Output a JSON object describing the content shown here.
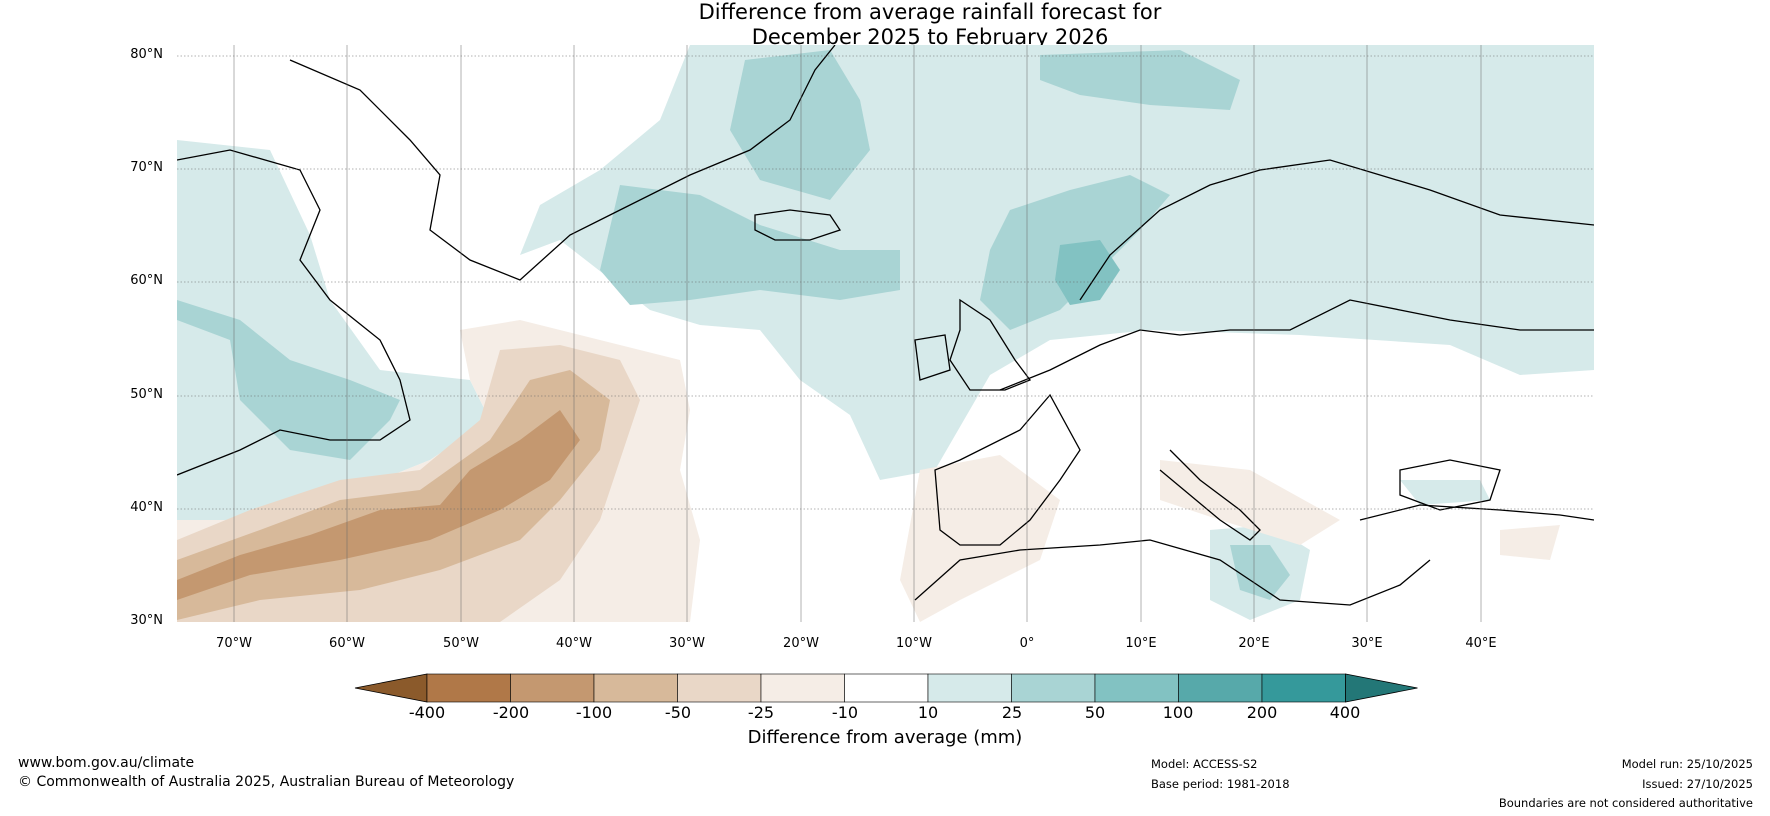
{
  "title": {
    "line1": "Difference from average rainfall forecast for",
    "line2": "December 2025 to February 2026"
  },
  "axes": {
    "lat_labels": [
      "80°N",
      "70°N",
      "60°N",
      "50°N",
      "40°N",
      "30°N"
    ],
    "lon_labels": [
      "70°W",
      "60°W",
      "50°W",
      "40°W",
      "30°W",
      "20°W",
      "10°W",
      "0°",
      "10°E",
      "20°E",
      "30°E",
      "40°E"
    ]
  },
  "colorbar": {
    "ticks": [
      "-400",
      "-200",
      "-100",
      "-50",
      "-25",
      "-10",
      "10",
      "25",
      "50",
      "100",
      "200",
      "400"
    ],
    "colors": [
      "#8b5a2b",
      "#b07848",
      "#c49870",
      "#d7b99a",
      "#e9d7c7",
      "#f5ede6",
      "#ffffff",
      "#d6eaea",
      "#a9d4d4",
      "#82c2c2",
      "#57a9aa",
      "#35999b",
      "#237777"
    ],
    "label": "Difference from average (mm)"
  },
  "footer": {
    "website": "www.bom.gov.au/climate",
    "copyright": "© Commonwealth of Australia 2025, Australian Bureau of Meteorology",
    "model": "Model: ACCESS-S2",
    "base_period": "Base period: 1981-2018",
    "model_run": "Model run: 25/10/2025",
    "issued": "Issued: 27/10/2025",
    "disclaimer": "Boundaries are not considered authoritative"
  }
}
